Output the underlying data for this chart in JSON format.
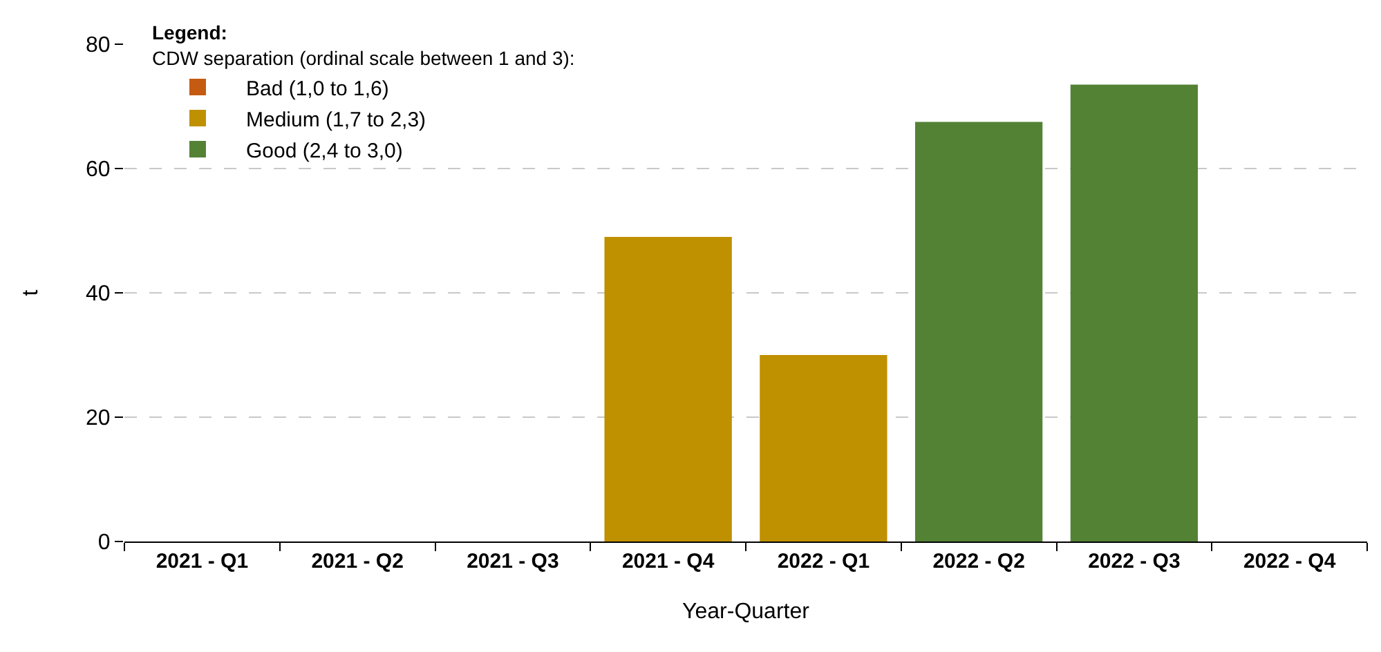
{
  "chart_data": {
    "type": "bar",
    "xlabel": "Year-Quarter",
    "ylabel": "t",
    "legend_title": "Legend:",
    "annotations": [
      "CDW separation (ordinal scale between 1 and 3):"
    ],
    "categories": [
      "2021 - Q1",
      "2021 - Q2",
      "2021 - Q3",
      "2021 - Q4",
      "2022 - Q1",
      "2022 - Q2",
      "2022 - Q3",
      "2022 - Q4"
    ],
    "series": [
      {
        "name": "Bad (1,0 to 1,6)",
        "color": "#c55a11",
        "values": [
          null,
          null,
          null,
          null,
          null,
          null,
          null,
          null
        ]
      },
      {
        "name": "Medium (1,7 to 2,3)",
        "color": "#bf9000",
        "values": [
          null,
          null,
          null,
          49,
          30,
          null,
          null,
          null
        ]
      },
      {
        "name": "Good (2,4 to 3,0)",
        "color": "#548235",
        "values": [
          null,
          null,
          null,
          null,
          null,
          67.5,
          73.5,
          null
        ]
      }
    ],
    "stacked": true,
    "ylim": [
      0,
      80
    ],
    "yticks": [
      0,
      20,
      40,
      60,
      80
    ],
    "grid": "y",
    "legend": "top left"
  }
}
